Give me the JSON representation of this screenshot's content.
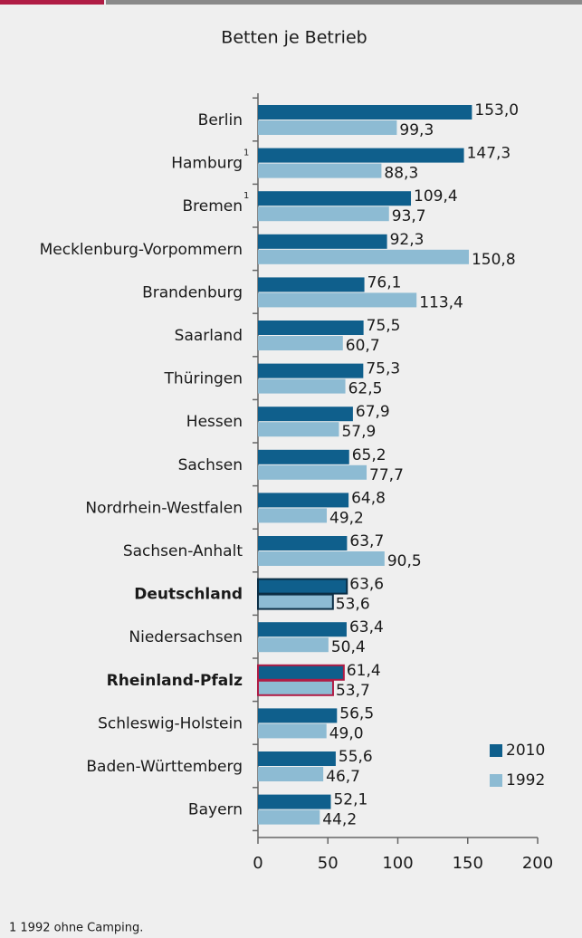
{
  "chart_data": {
    "type": "bar",
    "orientation": "horizontal",
    "title": "Betten je Betrieb",
    "categories": [
      "Berlin",
      "Hamburg",
      "Bremen",
      "Mecklenburg-Vorpommern",
      "Brandenburg",
      "Saarland",
      "Thüringen",
      "Hessen",
      "Sachsen",
      "Nordrhein-Westfalen",
      "Sachsen-Anhalt",
      "Deutschland",
      "Niedersachsen",
      "Rheinland-Pfalz",
      "Schleswig-Holstein",
      "Baden-Württemberg",
      "Bayern"
    ],
    "category_marks": [
      null,
      "1",
      "1",
      null,
      null,
      null,
      null,
      null,
      null,
      null,
      null,
      null,
      null,
      null,
      null,
      null,
      null
    ],
    "highlight_colors": [
      null,
      null,
      null,
      null,
      null,
      null,
      null,
      null,
      null,
      null,
      null,
      "#1a6fa0",
      null,
      "#b01c45",
      null,
      null,
      null
    ],
    "highlight_outlines": [
      null,
      null,
      null,
      null,
      null,
      null,
      null,
      null,
      null,
      null,
      null,
      "#0b2e45",
      null,
      "#b01c45",
      null,
      null,
      null
    ],
    "series": [
      {
        "name": "2010",
        "color": "#0f5f8c",
        "values": [
          153.0,
          147.3,
          109.4,
          92.3,
          76.1,
          75.5,
          75.3,
          67.9,
          65.2,
          64.8,
          63.7,
          63.6,
          63.4,
          61.4,
          56.5,
          55.6,
          52.1
        ],
        "value_labels": [
          "153,0",
          "147,3",
          "109,4",
          "92,3",
          "76,1",
          "75,5",
          "75,3",
          "67,9",
          "65,2",
          "64,8",
          "63,7",
          "63,6",
          "63,4",
          "61,4",
          "56,5",
          "55,6",
          "52,1"
        ]
      },
      {
        "name": "1992",
        "color": "#8dbbd3",
        "values": [
          99.3,
          88.3,
          93.7,
          150.8,
          113.4,
          60.7,
          62.5,
          57.9,
          77.7,
          49.2,
          90.5,
          53.6,
          50.4,
          53.7,
          49.0,
          46.7,
          44.2
        ],
        "value_labels": [
          "99,3",
          "88,3",
          "93,7",
          "150,8",
          "113,4",
          "60,7",
          "62,5",
          "57,9",
          "77,7",
          "49,2",
          "90,5",
          "53,6",
          "50,4",
          "53,7",
          "49,0",
          "46,7",
          "44,2"
        ]
      }
    ],
    "label_color": "#1a6fa0",
    "xlim": [
      0,
      200
    ],
    "xticks": [
      0,
      50,
      100,
      150,
      200
    ],
    "legend": "lower right",
    "footnote": "1 1992 ohne Camping."
  }
}
